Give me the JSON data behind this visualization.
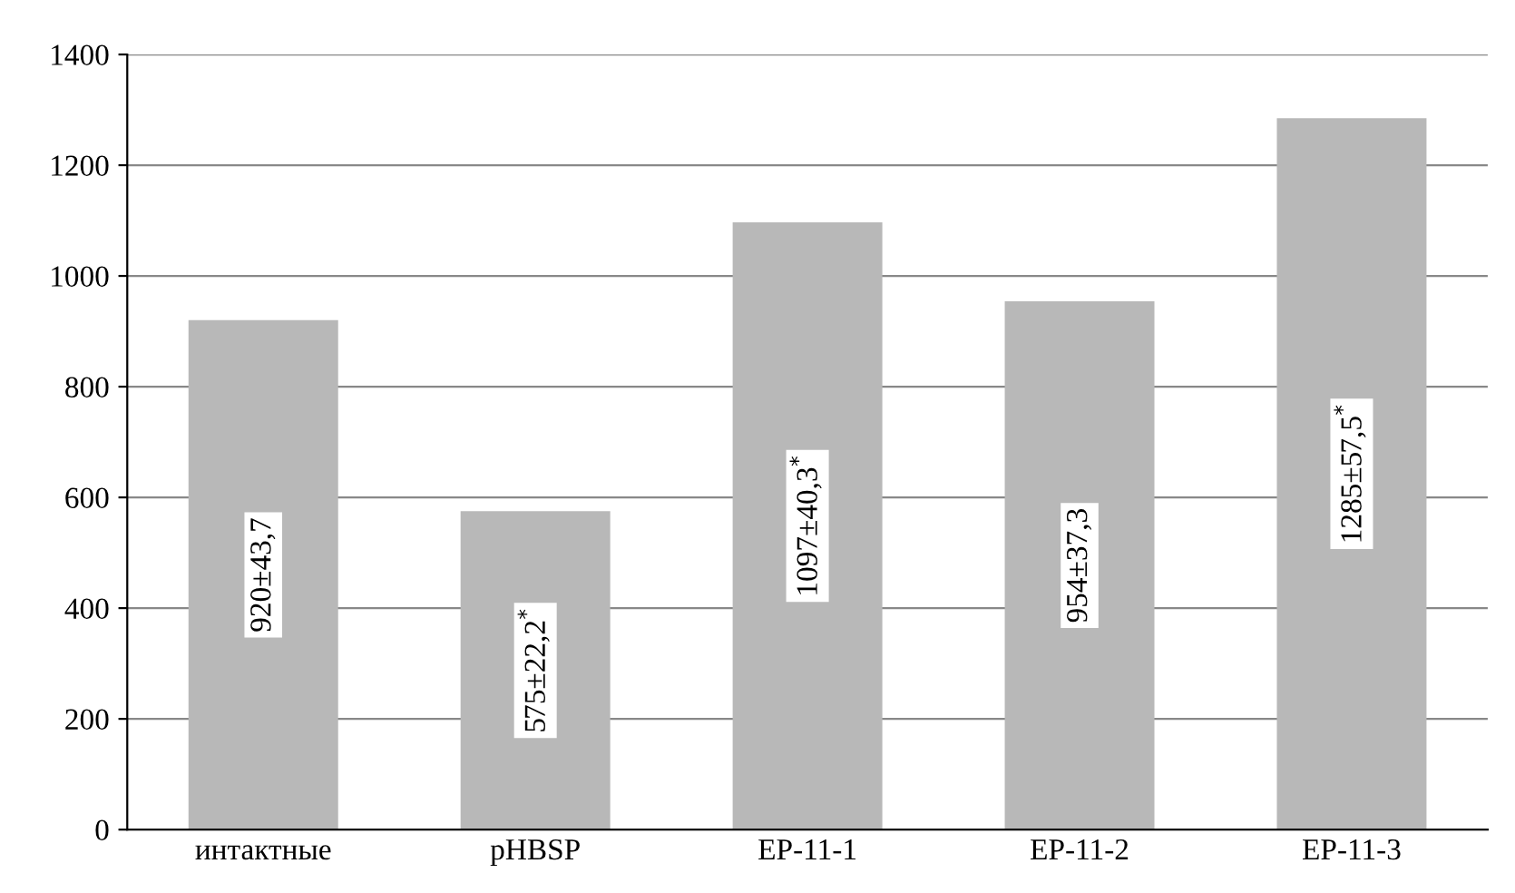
{
  "chart_data": {
    "type": "bar",
    "categories": [
      "интактные",
      "pHBSP",
      "EP-11-1",
      "EP-11-2",
      "EP-11-3"
    ],
    "values": [
      920,
      575,
      1097,
      954,
      1285
    ],
    "value_labels": [
      "920±43,7",
      "575±22,2$^{*}$",
      "1097±40,3$^{*}$",
      "954±37,3",
      "1285±57,5$^{*}$"
    ],
    "color": "#b8b8b8",
    "ylim": [
      0,
      1400
    ],
    "yticks": [
      0,
      200,
      400,
      600,
      800,
      1000,
      1200,
      1400
    ],
    "grid": "y",
    "legend": false
  }
}
